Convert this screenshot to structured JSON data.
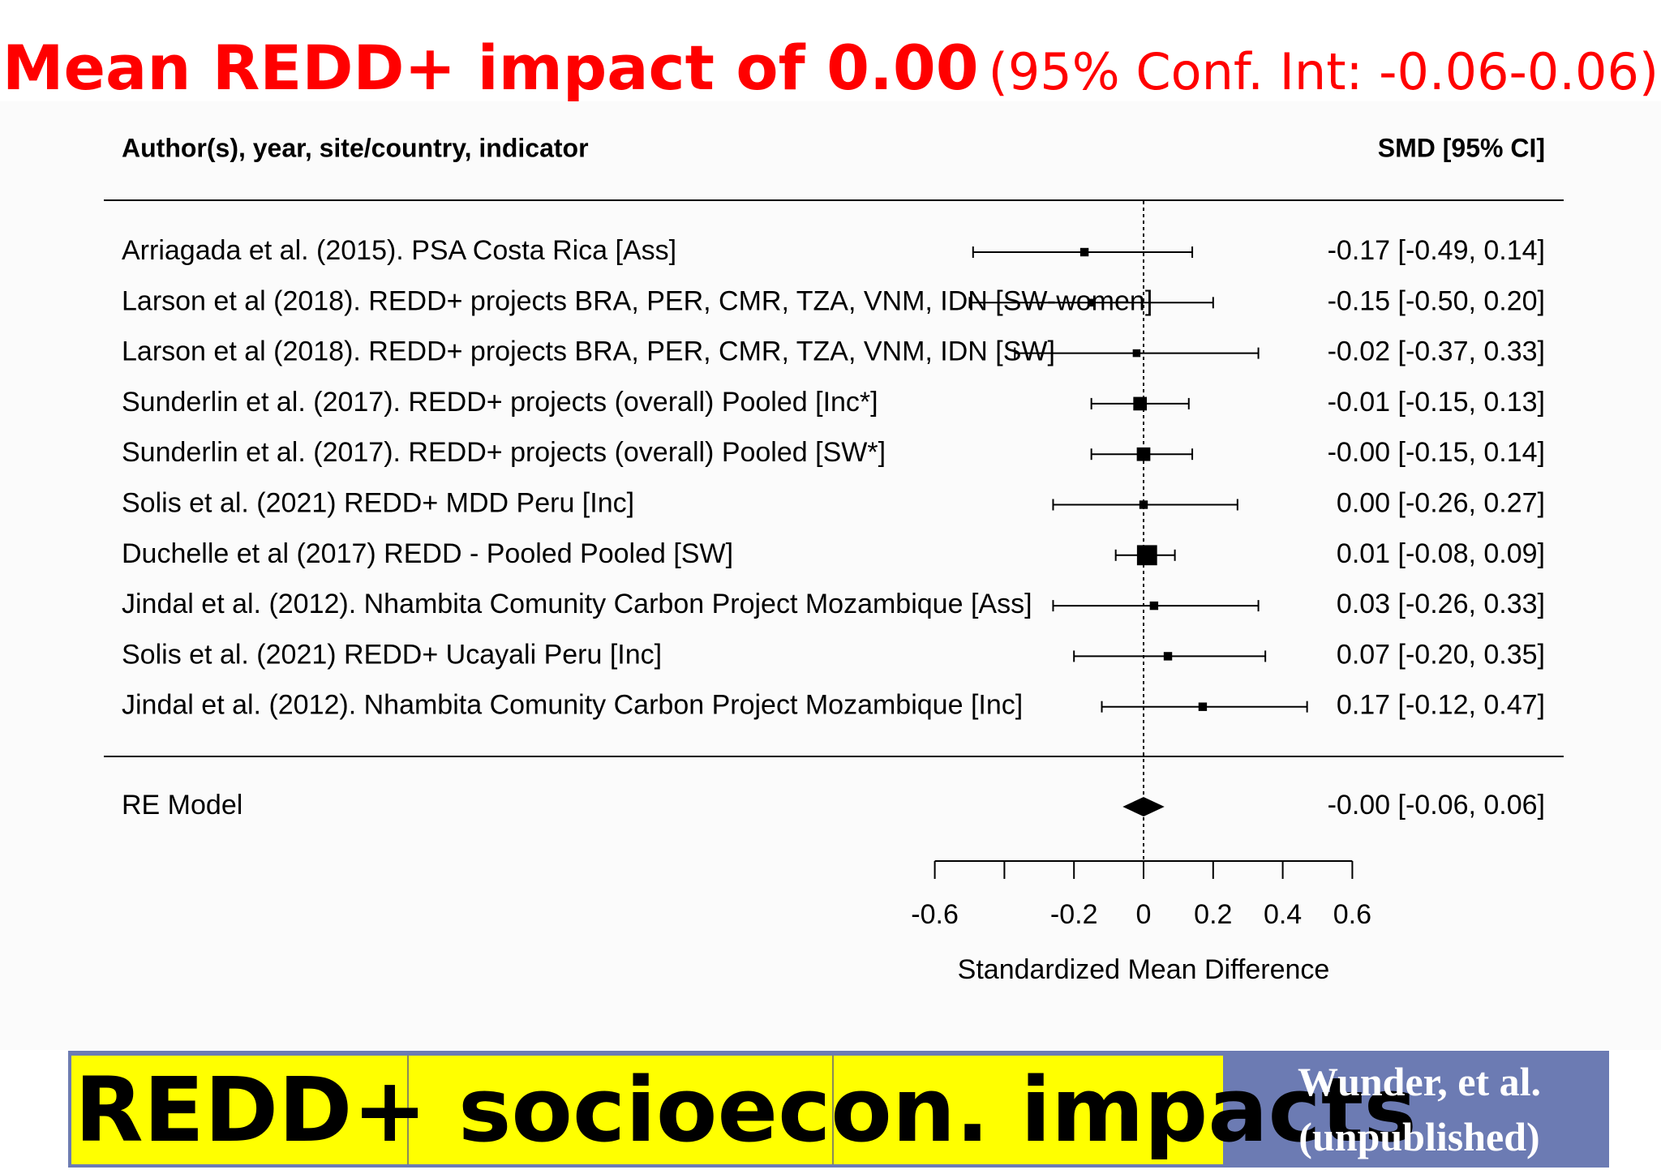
{
  "headline": {
    "main": "Mean REDD+ impact of 0.00",
    "ci": "(95% Conf. Int: -0.06-0.06)"
  },
  "chart_data": {
    "type": "forest",
    "column_headers": {
      "study": "Author(s), year, site/country, indicator",
      "effect": "SMD [95% CI]"
    },
    "studies": [
      {
        "label": "Arriagada et al. (2015). PSA Costa Rica [Ass]",
        "estimate": -0.17,
        "lower": -0.49,
        "upper": 0.14,
        "ci_text": "-0.17 [-0.49, 0.14]",
        "weight": 0.6
      },
      {
        "label": "Larson et al (2018). REDD+ projects BRA, PER, CMR, TZA, VNM, IDN [SW-women]",
        "estimate": -0.15,
        "lower": -0.5,
        "upper": 0.2,
        "ci_text": "-0.15 [-0.50, 0.20]",
        "weight": 0.5
      },
      {
        "label": "Larson et al (2018). REDD+ projects BRA, PER, CMR, TZA, VNM, IDN [SW]",
        "estimate": -0.02,
        "lower": -0.37,
        "upper": 0.33,
        "ci_text": "-0.02 [-0.37, 0.33]",
        "weight": 0.5
      },
      {
        "label": "Sunderlin et al. (2017). REDD+ projects (overall) Pooled [Inc*]",
        "estimate": -0.01,
        "lower": -0.15,
        "upper": 0.13,
        "ci_text": "-0.01 [-0.15, 0.13]",
        "weight": 1.3
      },
      {
        "label": "Sunderlin et al. (2017). REDD+ projects (overall) Pooled [SW*]",
        "estimate": -0.0,
        "lower": -0.15,
        "upper": 0.14,
        "ci_text": "-0.00 [-0.15, 0.14]",
        "weight": 1.3
      },
      {
        "label": "Solis et al. (2021) REDD+ MDD Peru [Inc]",
        "estimate": 0.0,
        "lower": -0.26,
        "upper": 0.27,
        "ci_text": "0.00 [-0.26, 0.27]",
        "weight": 0.6
      },
      {
        "label": "Duchelle et al (2017) REDD - Pooled Pooled [SW]",
        "estimate": 0.01,
        "lower": -0.08,
        "upper": 0.09,
        "ci_text": "0.01 [-0.08, 0.09]",
        "weight": 2.2
      },
      {
        "label": "Jindal et al. (2012). Nhambita Comunity Carbon Project Mozambique [Ass]",
        "estimate": 0.03,
        "lower": -0.26,
        "upper": 0.33,
        "ci_text": "0.03 [-0.26, 0.33]",
        "weight": 0.6
      },
      {
        "label": "Solis et al. (2021) REDD+ Ucayali Peru [Inc]",
        "estimate": 0.07,
        "lower": -0.2,
        "upper": 0.35,
        "ci_text": "0.07 [-0.20, 0.35]",
        "weight": 0.6
      },
      {
        "label": "Jindal et al. (2012). Nhambita Comunity Carbon Project Mozambique [Inc]",
        "estimate": 0.17,
        "lower": -0.12,
        "upper": 0.47,
        "ci_text": "0.17 [-0.12, 0.47]",
        "weight": 0.6
      }
    ],
    "summary": {
      "label": "RE Model",
      "estimate": -0.0,
      "lower": -0.06,
      "upper": 0.06,
      "ci_text": "-0.00 [-0.06, 0.06]"
    },
    "xaxis": {
      "label": "Standardized Mean Difference",
      "ticks": [
        -0.6,
        -0.4,
        -0.2,
        0,
        0.2,
        0.4,
        0.6
      ],
      "tick_labels": [
        "-0.6",
        "-0.2",
        "0",
        "0.2",
        "0.4",
        "0.6"
      ],
      "labeled_ticks": [
        -0.6,
        -0.2,
        0,
        0.2,
        0.4,
        0.6
      ],
      "range": [
        -0.6,
        0.6
      ]
    },
    "reference_line": 0
  },
  "footer": {
    "title_parts": [
      "REDD+ ",
      "socioecon",
      ". impacts"
    ],
    "credit_line1": "Wunder, et al.",
    "credit_line2": "(unpublished)"
  }
}
